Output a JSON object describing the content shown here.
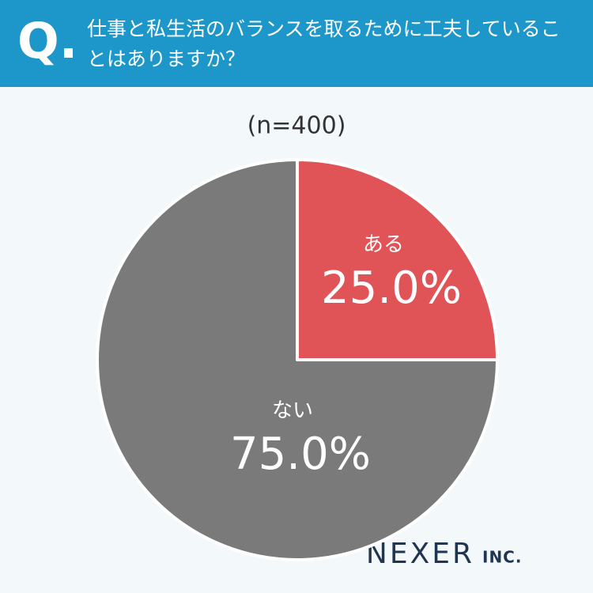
{
  "question_marker": "Q.",
  "brand": {
    "name": "NEXER",
    "suffix": "INC."
  },
  "chart_data": {
    "type": "pie",
    "title": "仕事と私生活のバランスを取るために工夫していることはありますか？",
    "subtitle": "(n=400)",
    "categories": [
      "ある",
      "ない"
    ],
    "values": [
      25.0,
      75.0
    ],
    "value_labels": [
      "25.0%",
      "75.0%"
    ],
    "colors": [
      "#e05356",
      "#7a7a7a"
    ]
  }
}
